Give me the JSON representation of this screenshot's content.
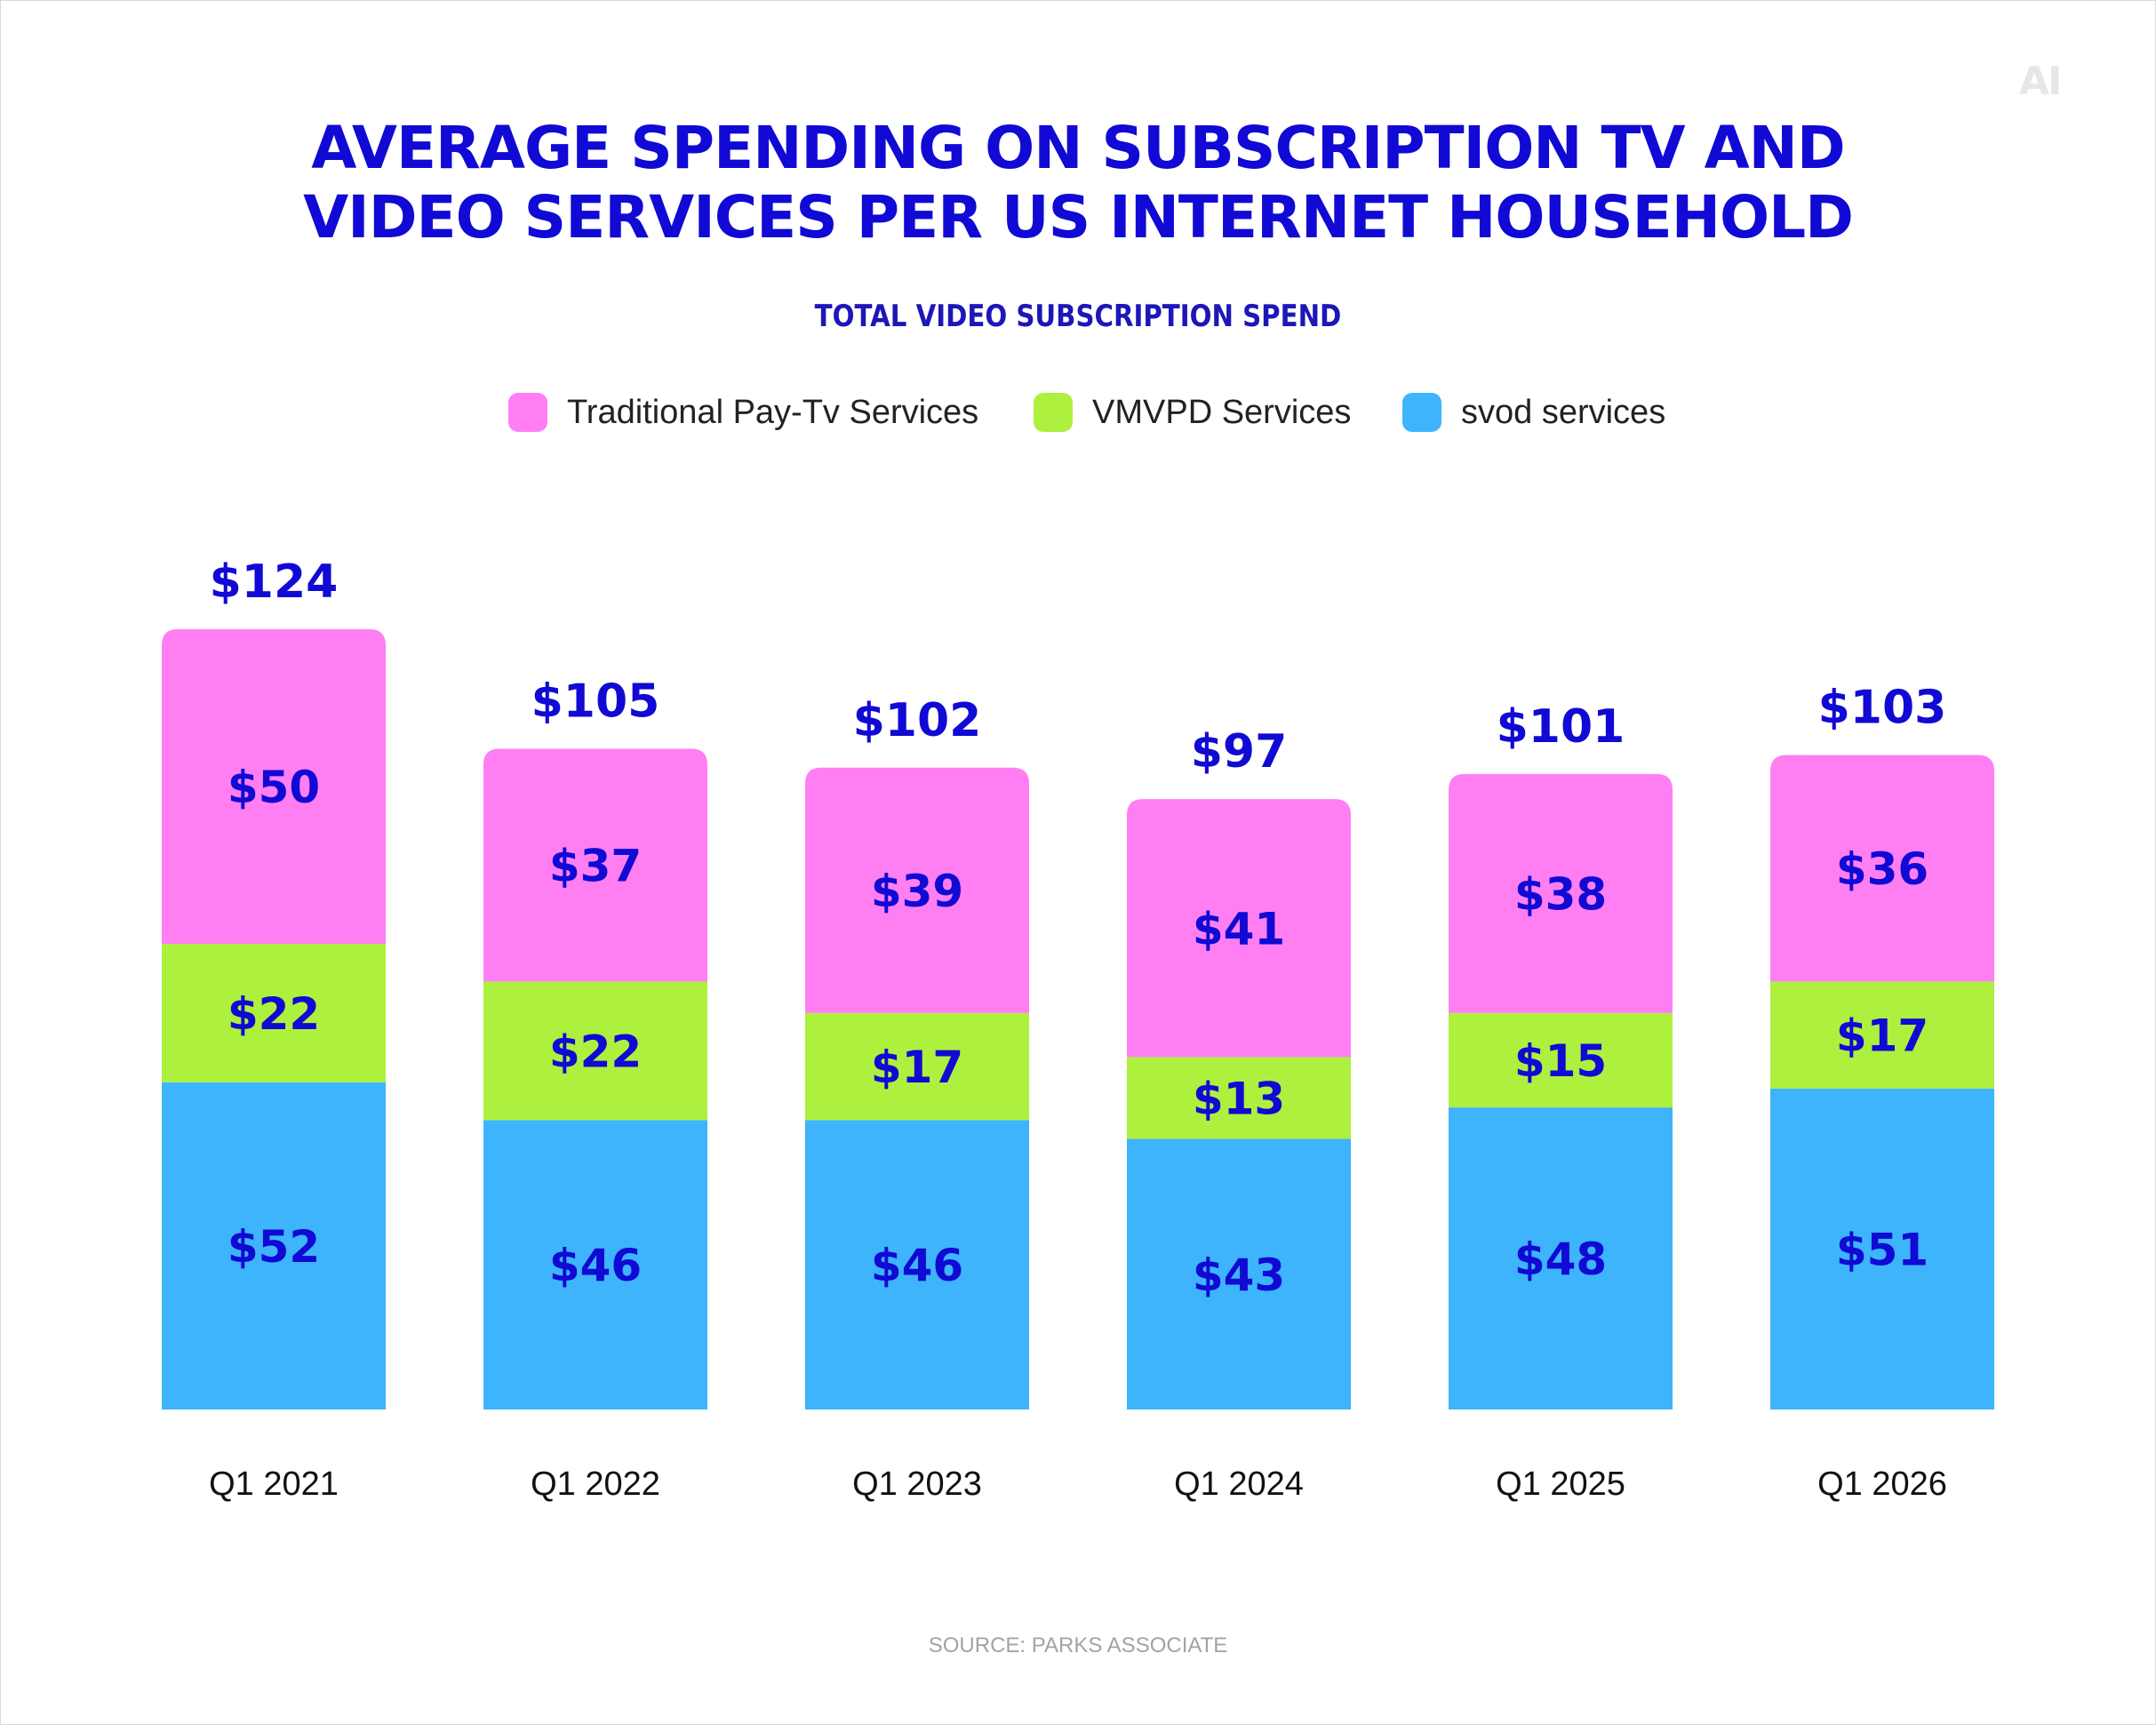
{
  "logo": "AI",
  "title_line1": "AVERAGE SPENDING ON SUBSCRIPTION TV AND",
  "title_line2": "VIDEO SERVICES PER US INTERNET HOUSEHOLD",
  "subtitle": "TOTAL VIDEO SUBSCRIPTION SPEND",
  "source": "SOURCE: PARKS ASSOCIATE",
  "colors": {
    "traditional": "#ff7ff3",
    "vmvpd": "#aef03e",
    "svod": "#3db4fb",
    "label": "#1109d4"
  },
  "chart_data": {
    "type": "bar",
    "stacked": true,
    "categories": [
      "Q1 2021",
      "Q1 2022",
      "Q1 2023",
      "Q1 2024",
      "Q1 2025",
      "Q1 2026"
    ],
    "series": [
      {
        "name": "svod services",
        "values": [
          52,
          46,
          46,
          43,
          48,
          51
        ],
        "labels": [
          "$52",
          "$46",
          "$46",
          "$43",
          "$48",
          "$51"
        ],
        "color": "#3db4fb"
      },
      {
        "name": "VMVPD Services",
        "values": [
          22,
          22,
          17,
          13,
          15,
          17
        ],
        "labels": [
          "$22",
          "$22",
          "$17",
          "$13",
          "$15",
          "$17"
        ],
        "color": "#aef03e"
      },
      {
        "name": "Traditional Pay-Tv Services",
        "values": [
          50,
          37,
          39,
          41,
          38,
          36
        ],
        "labels": [
          "$50",
          "$37",
          "$39",
          "$41",
          "$38",
          "$36"
        ],
        "color": "#ff7ff3"
      }
    ],
    "totals": [
      124,
      105,
      102,
      97,
      101,
      103
    ],
    "total_labels": [
      "$124",
      "$105",
      "$102",
      "$97",
      "$101",
      "$103"
    ],
    "legend_order": [
      "Traditional Pay-Tv Services",
      "VMVPD Services",
      "svod services"
    ],
    "legend": "top-center",
    "grid": false,
    "axes_visible": false,
    "ylim": [
      0,
      124
    ]
  }
}
